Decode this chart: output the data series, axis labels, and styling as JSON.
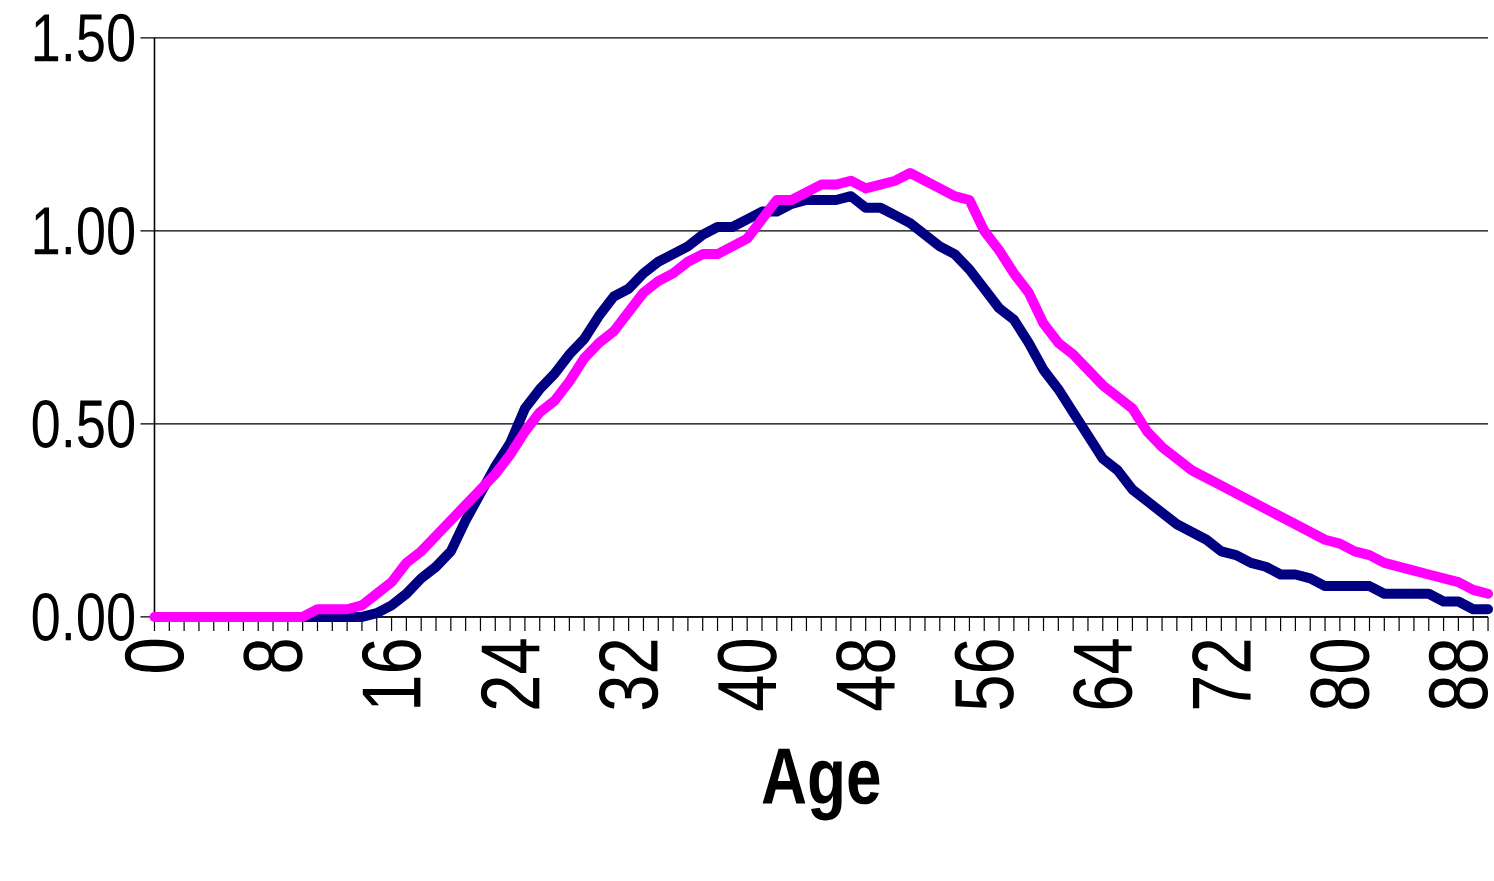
{
  "chart_data": {
    "type": "line",
    "xlabel": "Age",
    "x": [
      0,
      1,
      2,
      3,
      4,
      5,
      6,
      7,
      8,
      9,
      10,
      11,
      12,
      13,
      14,
      15,
      16,
      17,
      18,
      19,
      20,
      21,
      22,
      23,
      24,
      25,
      26,
      27,
      28,
      29,
      30,
      31,
      32,
      33,
      34,
      35,
      36,
      37,
      38,
      39,
      40,
      41,
      42,
      43,
      44,
      45,
      46,
      47,
      48,
      49,
      50,
      51,
      52,
      53,
      54,
      55,
      56,
      57,
      58,
      59,
      60,
      61,
      62,
      63,
      64,
      65,
      66,
      67,
      68,
      69,
      70,
      71,
      72,
      73,
      74,
      75,
      76,
      77,
      78,
      79,
      80,
      81,
      82,
      83,
      84,
      85,
      86,
      87,
      88,
      89,
      90
    ],
    "series": [
      {
        "color": "#000080",
        "values": [
          null,
          null,
          null,
          null,
          null,
          null,
          null,
          null,
          null,
          0,
          0,
          0,
          0,
          0,
          0,
          0.01,
          0.03,
          0.06,
          0.1,
          0.13,
          0.17,
          0.25,
          0.32,
          0.39,
          0.45,
          0.54,
          0.59,
          0.63,
          0.68,
          0.72,
          0.78,
          0.83,
          0.85,
          0.89,
          0.92,
          0.94,
          0.96,
          0.99,
          1.01,
          1.01,
          1.03,
          1.05,
          1.05,
          1.07,
          1.08,
          1.08,
          1.08,
          1.09,
          1.06,
          1.06,
          1.04,
          1.02,
          0.99,
          0.96,
          0.94,
          0.9,
          0.85,
          0.8,
          0.77,
          0.71,
          0.64,
          0.59,
          0.53,
          0.47,
          0.41,
          0.38,
          0.33,
          0.3,
          0.27,
          0.24,
          0.22,
          0.2,
          0.17,
          0.16,
          0.14,
          0.13,
          0.11,
          0.11,
          0.1,
          0.08,
          0.08,
          0.08,
          0.08,
          0.06,
          0.06,
          0.06,
          0.06,
          0.04,
          0.04,
          0.02,
          0.02
        ]
      },
      {
        "color": "#ff00ff",
        "values": [
          0,
          0,
          0,
          0,
          0,
          0,
          0,
          0,
          0,
          0,
          0,
          0.02,
          0.02,
          0.02,
          0.03,
          0.06,
          0.09,
          0.14,
          0.17,
          0.21,
          0.25,
          0.29,
          0.33,
          0.37,
          0.42,
          0.48,
          0.53,
          0.56,
          0.61,
          0.67,
          0.71,
          0.74,
          0.79,
          0.84,
          0.87,
          0.89,
          0.92,
          0.94,
          0.94,
          0.96,
          0.98,
          1.03,
          1.08,
          1.08,
          1.1,
          1.12,
          1.12,
          1.13,
          1.11,
          1.12,
          1.13,
          1.15,
          1.13,
          1.11,
          1.09,
          1.08,
          1.0,
          0.95,
          0.89,
          0.84,
          0.76,
          0.71,
          0.68,
          0.64,
          0.6,
          0.57,
          0.54,
          0.48,
          0.44,
          0.41,
          0.38,
          0.36,
          0.34,
          0.32,
          0.3,
          0.28,
          0.26,
          0.24,
          0.22,
          0.2,
          0.19,
          0.17,
          0.16,
          0.14,
          0.13,
          0.12,
          0.11,
          0.1,
          0.09,
          0.07,
          0.06
        ]
      }
    ],
    "xlim": [
      0,
      90
    ],
    "xticks": [
      0,
      {
        "value": 1,
        "label": null
      },
      {
        "value": 2,
        "label": null
      },
      {
        "value": 3,
        "label": null
      },
      {
        "value": 4,
        "label": null
      },
      {
        "value": 5,
        "label": null
      },
      {
        "value": 6,
        "label": null
      },
      {
        "value": 7,
        "label": null
      },
      8,
      {
        "value": 9,
        "label": null
      },
      {
        "value": 10,
        "label": null
      },
      {
        "value": 11,
        "label": null
      },
      {
        "value": 12,
        "label": null
      },
      {
        "value": 13,
        "label": null
      },
      {
        "value": 14,
        "label": null
      },
      {
        "value": 15,
        "label": null
      },
      16,
      {
        "value": 17,
        "label": null
      },
      {
        "value": 18,
        "label": null
      },
      {
        "value": 19,
        "label": null
      },
      {
        "value": 20,
        "label": null
      },
      {
        "value": 21,
        "label": null
      },
      {
        "value": 22,
        "label": null
      },
      {
        "value": 23,
        "label": null
      },
      24,
      {
        "value": 25,
        "label": null
      },
      {
        "value": 26,
        "label": null
      },
      {
        "value": 27,
        "label": null
      },
      {
        "value": 28,
        "label": null
      },
      {
        "value": 29,
        "label": null
      },
      {
        "value": 30,
        "label": null
      },
      {
        "value": 31,
        "label": null
      },
      32,
      {
        "value": 33,
        "label": null
      },
      {
        "value": 34,
        "label": null
      },
      {
        "value": 35,
        "label": null
      },
      {
        "value": 36,
        "label": null
      },
      {
        "value": 37,
        "label": null
      },
      {
        "value": 38,
        "label": null
      },
      {
        "value": 39,
        "label": null
      },
      40,
      {
        "value": 41,
        "label": null
      },
      {
        "value": 42,
        "label": null
      },
      {
        "value": 43,
        "label": null
      },
      {
        "value": 44,
        "label": null
      },
      {
        "value": 45,
        "label": null
      },
      {
        "value": 46,
        "label": null
      },
      {
        "value": 47,
        "label": null
      },
      48,
      {
        "value": 49,
        "label": null
      },
      {
        "value": 50,
        "label": null
      },
      {
        "value": 51,
        "label": null
      },
      {
        "value": 52,
        "label": null
      },
      {
        "value": 53,
        "label": null
      },
      {
        "value": 54,
        "label": null
      },
      {
        "value": 55,
        "label": null
      },
      56,
      {
        "value": 57,
        "label": null
      },
      {
        "value": 58,
        "label": null
      },
      {
        "value": 59,
        "label": null
      },
      {
        "value": 60,
        "label": null
      },
      {
        "value": 61,
        "label": null
      },
      {
        "value": 62,
        "label": null
      },
      {
        "value": 63,
        "label": null
      },
      64,
      {
        "value": 65,
        "label": null
      },
      {
        "value": 66,
        "label": null
      },
      {
        "value": 67,
        "label": null
      },
      {
        "value": 68,
        "label": null
      },
      {
        "value": 69,
        "label": null
      },
      {
        "value": 70,
        "label": null
      },
      {
        "value": 71,
        "label": null
      },
      72,
      {
        "value": 73,
        "label": null
      },
      {
        "value": 74,
        "label": null
      },
      {
        "value": 75,
        "label": null
      },
      {
        "value": 76,
        "label": null
      },
      {
        "value": 77,
        "label": null
      },
      {
        "value": 78,
        "label": null
      },
      {
        "value": 79,
        "label": null
      },
      80,
      {
        "value": 81,
        "label": null
      },
      {
        "value": 82,
        "label": null
      },
      {
        "value": 83,
        "label": null
      },
      {
        "value": 84,
        "label": null
      },
      {
        "value": 85,
        "label": null
      },
      {
        "value": 86,
        "label": null
      },
      {
        "value": 87,
        "label": null
      },
      88,
      {
        "value": 89,
        "label": null
      },
      {
        "value": 90,
        "label": null
      }
    ],
    "ylim": [
      0,
      1.5
    ],
    "yticks": [
      {
        "value": 0,
        "label": "0.00"
      },
      {
        "value": 0.5,
        "label": "0.50"
      },
      {
        "value": 1,
        "label": "1.00"
      },
      {
        "value": 1.5,
        "label": "1.50"
      }
    ],
    "grid": "y",
    "marker": "none",
    "line_style": "solid"
  }
}
